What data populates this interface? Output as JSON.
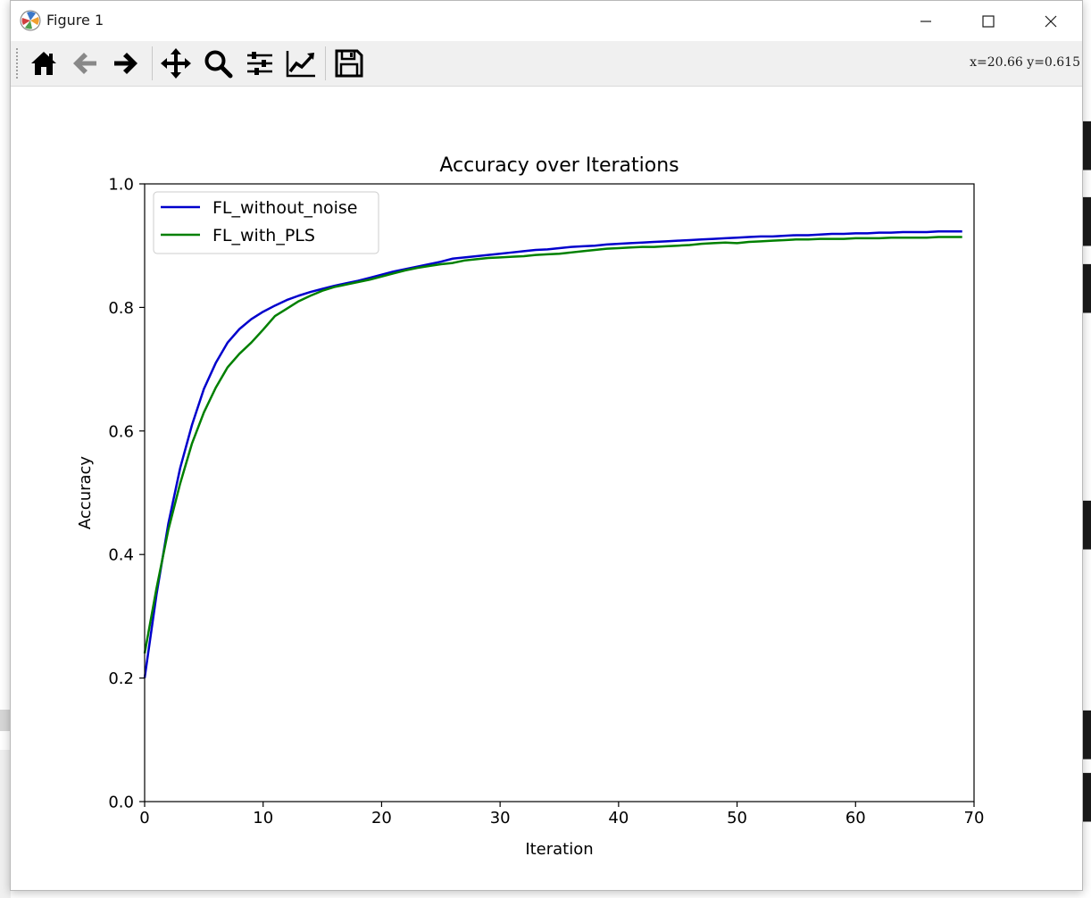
{
  "window": {
    "title": "Figure 1",
    "minimize_label": "Minimize",
    "maximize_label": "Maximize",
    "close_label": "Close"
  },
  "toolbar": {
    "buttons": [
      {
        "name": "home-button",
        "icon": "home-icon"
      },
      {
        "name": "back-button",
        "icon": "arrow-left-icon"
      },
      {
        "name": "forward-button",
        "icon": "arrow-right-icon"
      },
      {
        "name": "pan-button",
        "icon": "move-icon"
      },
      {
        "name": "zoom-button",
        "icon": "magnifier-icon"
      },
      {
        "name": "subplots-button",
        "icon": "sliders-icon"
      },
      {
        "name": "customize-button",
        "icon": "line-chart-icon"
      },
      {
        "name": "save-button",
        "icon": "floppy-disk-icon"
      }
    ],
    "coords_text": "x=20.66 y=0.615"
  },
  "chart_data": {
    "type": "line",
    "title": "Accuracy over Iterations",
    "xlabel": "Iteration",
    "ylabel": "Accuracy",
    "xlim": [
      0,
      70
    ],
    "ylim": [
      0.0,
      1.0
    ],
    "x_ticks": [
      "0",
      "10",
      "20",
      "30",
      "40",
      "50",
      "60",
      "70"
    ],
    "y_ticks": [
      "0.0",
      "0.2",
      "0.4",
      "0.6",
      "0.8",
      "1.0"
    ],
    "legend_position": "upper-left",
    "grid": false,
    "x": [
      0,
      1,
      2,
      3,
      4,
      5,
      6,
      7,
      8,
      9,
      10,
      11,
      12,
      13,
      14,
      15,
      16,
      17,
      18,
      19,
      20,
      21,
      22,
      23,
      24,
      25,
      26,
      27,
      28,
      29,
      30,
      31,
      32,
      33,
      34,
      35,
      36,
      37,
      38,
      39,
      40,
      41,
      42,
      43,
      44,
      45,
      46,
      47,
      48,
      49,
      50,
      51,
      52,
      53,
      54,
      55,
      56,
      57,
      58,
      59,
      60,
      61,
      62,
      63,
      64,
      65,
      66,
      67,
      68,
      69
    ],
    "series": [
      {
        "name": "FL_without_noise",
        "color": "#0000cc",
        "values": [
          0.2,
          0.335,
          0.45,
          0.54,
          0.61,
          0.668,
          0.71,
          0.743,
          0.765,
          0.781,
          0.793,
          0.803,
          0.812,
          0.819,
          0.825,
          0.83,
          0.835,
          0.839,
          0.843,
          0.848,
          0.853,
          0.858,
          0.862,
          0.866,
          0.87,
          0.874,
          0.879,
          0.881,
          0.883,
          0.885,
          0.887,
          0.889,
          0.891,
          0.893,
          0.894,
          0.896,
          0.898,
          0.899,
          0.9,
          0.902,
          0.903,
          0.904,
          0.905,
          0.906,
          0.907,
          0.908,
          0.909,
          0.91,
          0.911,
          0.912,
          0.913,
          0.914,
          0.915,
          0.915,
          0.916,
          0.917,
          0.917,
          0.918,
          0.919,
          0.919,
          0.92,
          0.92,
          0.921,
          0.921,
          0.922,
          0.922,
          0.922,
          0.923,
          0.923,
          0.923
        ]
      },
      {
        "name": "FL_with_PLS",
        "color": "#008000",
        "values": [
          0.24,
          0.345,
          0.44,
          0.515,
          0.58,
          0.63,
          0.67,
          0.703,
          0.725,
          0.743,
          0.764,
          0.786,
          0.798,
          0.81,
          0.819,
          0.827,
          0.833,
          0.837,
          0.841,
          0.845,
          0.85,
          0.855,
          0.86,
          0.864,
          0.867,
          0.87,
          0.872,
          0.876,
          0.878,
          0.88,
          0.881,
          0.882,
          0.883,
          0.885,
          0.886,
          0.887,
          0.889,
          0.891,
          0.893,
          0.895,
          0.896,
          0.897,
          0.898,
          0.898,
          0.899,
          0.9,
          0.901,
          0.903,
          0.904,
          0.905,
          0.904,
          0.906,
          0.907,
          0.908,
          0.909,
          0.91,
          0.91,
          0.911,
          0.911,
          0.911,
          0.912,
          0.912,
          0.912,
          0.913,
          0.913,
          0.913,
          0.913,
          0.914,
          0.914,
          0.914
        ]
      }
    ]
  }
}
